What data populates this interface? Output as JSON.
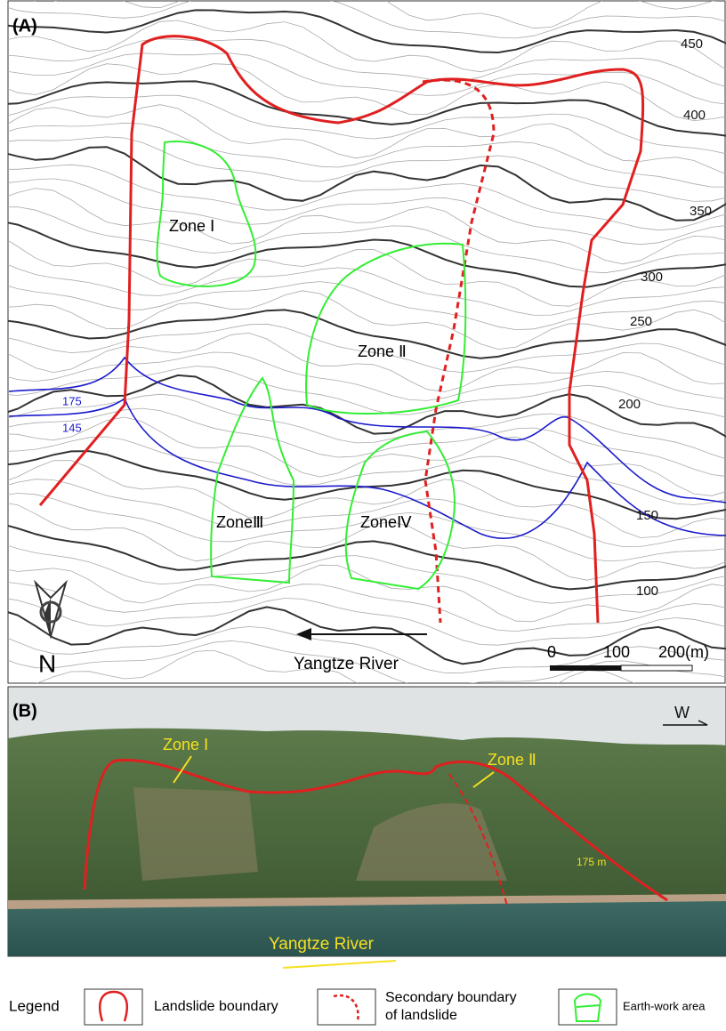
{
  "panel_a": {
    "label": "(A)",
    "contours": [
      "450",
      "400",
      "350",
      "300",
      "250",
      "200",
      "150",
      "100"
    ],
    "water_levels": [
      "175",
      "145"
    ],
    "zones": [
      "Zone Ⅰ",
      "Zone Ⅱ",
      "ZoneⅢ",
      "ZoneⅣ"
    ],
    "north": "N",
    "river": "Yangtze River",
    "scale": [
      "0",
      "100",
      "200(m)"
    ]
  },
  "panel_b": {
    "label": "(B)",
    "zones": [
      "Zone Ⅰ",
      "Zone Ⅱ"
    ],
    "level": "175 m",
    "river": "Yangtze River",
    "direction": "W"
  },
  "legend": {
    "title": "Legend",
    "items": [
      "Landslide boundary",
      [
        "Secondary boundary",
        "of landslide"
      ],
      "Earth-work area"
    ]
  }
}
